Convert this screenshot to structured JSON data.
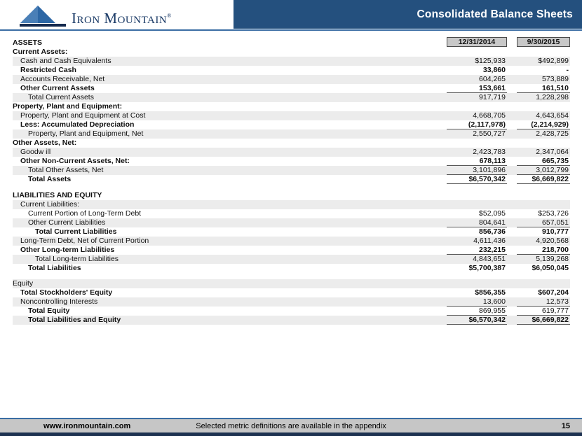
{
  "header": {
    "title": "Consolidated Balance Sheets",
    "logo_text": "Iron Mountain",
    "logo_registered": "®"
  },
  "table": {
    "columns": [
      "12/31/2014",
      "9/30/2015"
    ],
    "rows": [
      {
        "type": "colheader",
        "label": "ASSETS",
        "indent": 0,
        "bold": true,
        "shaded": false
      },
      {
        "type": "data",
        "label": "Current Assets:",
        "indent": 0,
        "bold": true,
        "shaded": false,
        "v1": "",
        "v2": ""
      },
      {
        "type": "data",
        "label": "Cash and Cash Equivalents",
        "indent": 1,
        "bold": false,
        "shaded": true,
        "v1": "$125,933",
        "v2": "$492,899"
      },
      {
        "type": "data",
        "label": "Restricted Cash",
        "indent": 1,
        "bold": true,
        "shaded": false,
        "v1": "33,860",
        "v2": "-",
        "vbold": true
      },
      {
        "type": "data",
        "label": "Accounts Receivable, Net",
        "indent": 1,
        "bold": false,
        "shaded": true,
        "v1": "604,265",
        "v2": "573,889"
      },
      {
        "type": "data",
        "label": "Other Current Assets",
        "indent": 1,
        "bold": true,
        "shaded": false,
        "v1": "153,661",
        "v2": "161,510",
        "vbold": true,
        "underline": true
      },
      {
        "type": "data",
        "label": "Total Current Assets",
        "indent": 2,
        "bold": false,
        "shaded": true,
        "v1": "917,719",
        "v2": "1,228,298"
      },
      {
        "type": "data",
        "label": "Property, Plant and Equipment:",
        "indent": 0,
        "bold": true,
        "shaded": false,
        "v1": "",
        "v2": ""
      },
      {
        "type": "data",
        "label": "Property, Plant and Equipment at Cost",
        "indent": 1,
        "bold": false,
        "shaded": true,
        "v1": "4,668,705",
        "v2": "4,643,654"
      },
      {
        "type": "data",
        "label": "Less: Accumulated Depreciation",
        "indent": 1,
        "bold": true,
        "shaded": false,
        "v1": "(2,117,978)",
        "v2": "(2,214,929)",
        "vbold": true,
        "underline": true
      },
      {
        "type": "data",
        "label": "Property, Plant and Equipment, Net",
        "indent": 2,
        "bold": false,
        "shaded": true,
        "v1": "2,550,727",
        "v2": "2,428,725"
      },
      {
        "type": "data",
        "label": "Other Assets, Net:",
        "indent": 0,
        "bold": true,
        "shaded": false,
        "v1": "",
        "v2": ""
      },
      {
        "type": "data",
        "label": "Goodw ill",
        "indent": 1,
        "bold": false,
        "shaded": true,
        "v1": "2,423,783",
        "v2": "2,347,064"
      },
      {
        "type": "data",
        "label": "Other Non-Current Assets, Net:",
        "indent": 1,
        "bold": true,
        "shaded": false,
        "v1": "678,113",
        "v2": "665,735",
        "vbold": true,
        "underline": true
      },
      {
        "type": "data",
        "label": "Total Other Assets, Net",
        "indent": 2,
        "bold": false,
        "shaded": true,
        "v1": "3,101,896",
        "v2": "3,012,799",
        "underline": true
      },
      {
        "type": "data",
        "label": "Total Assets",
        "indent": 2,
        "bold": true,
        "shaded": false,
        "v1": "$6,570,342",
        "v2": "$6,669,822",
        "vbold": true,
        "underline": true
      },
      {
        "type": "spacer",
        "h": 10
      },
      {
        "type": "data",
        "label": "LIABILITIES AND EQUITY",
        "indent": 0,
        "bold": true,
        "shaded": false,
        "v1": "",
        "v2": ""
      },
      {
        "type": "data",
        "label": "Current Liabilities:",
        "indent": 1,
        "bold": false,
        "shaded": true,
        "v1": "",
        "v2": ""
      },
      {
        "type": "data",
        "label": "Current Portion of Long-Term Debt",
        "indent": 2,
        "bold": false,
        "shaded": false,
        "v1": "$52,095",
        "v2": "$253,726"
      },
      {
        "type": "data",
        "label": "Other Current Liabilities",
        "indent": 2,
        "bold": false,
        "shaded": true,
        "v1": "804,641",
        "v2": "657,051",
        "underline": true
      },
      {
        "type": "data",
        "label": "Total Current Liabilities",
        "indent": 3,
        "bold": true,
        "shaded": false,
        "v1": "856,736",
        "v2": "910,777",
        "vbold": true
      },
      {
        "type": "data",
        "label": "Long-Term Debt, Net of Current Portion",
        "indent": 1,
        "bold": false,
        "shaded": true,
        "v1": "4,611,436",
        "v2": "4,920,568"
      },
      {
        "type": "data",
        "label": "Other Long-term Liabilities",
        "indent": 1,
        "bold": true,
        "shaded": false,
        "v1": "232,215",
        "v2": "218,700",
        "vbold": true,
        "underline": true
      },
      {
        "type": "data",
        "label": "Total Long-term Liabilities",
        "indent": 3,
        "bold": false,
        "shaded": true,
        "v1": "4,843,651",
        "v2": "5,139,268"
      },
      {
        "type": "data",
        "label": "Total Liabilities",
        "indent": 2,
        "bold": true,
        "shaded": false,
        "v1": "$5,700,387",
        "v2": "$6,050,045",
        "vbold": true
      },
      {
        "type": "spacer",
        "h": 9
      },
      {
        "type": "data",
        "label": "Equity",
        "indent": 0,
        "bold": false,
        "shaded": true,
        "v1": "",
        "v2": ""
      },
      {
        "type": "data",
        "label": "Total Stockholders' Equity",
        "indent": 1,
        "bold": true,
        "shaded": false,
        "v1": "$856,355",
        "v2": "$607,204",
        "vbold": true
      },
      {
        "type": "data",
        "label": "Noncontrolling Interests",
        "indent": 1,
        "bold": false,
        "shaded": true,
        "v1": "13,600",
        "v2": "12,573",
        "underline": true
      },
      {
        "type": "data",
        "label": "Total Equity",
        "indent": 2,
        "bold": true,
        "shaded": false,
        "v1": "869,955",
        "v2": "619,777",
        "underline": true
      },
      {
        "type": "data",
        "label": "Total Liabilities and Equity",
        "indent": 2,
        "bold": true,
        "shaded": true,
        "v1": "$6,570,342",
        "v2": "$6,669,822",
        "vbold": true,
        "underline": true
      }
    ]
  },
  "footer": {
    "url": "www.ironmountain.com",
    "note": "Selected metric definitions are available in the appendix",
    "page": "15"
  },
  "colors": {
    "banner_navy": "#24507E",
    "rule_blue": "#3A6DA3",
    "row_stripe": "#ECECEC",
    "column_header_bg": "#C8C8C8",
    "footer_bar": "#C6C6C6",
    "bottom_strip": "#1C3150",
    "logo_navy": "#1A3A66",
    "logo_blue": "#2D67A5"
  }
}
